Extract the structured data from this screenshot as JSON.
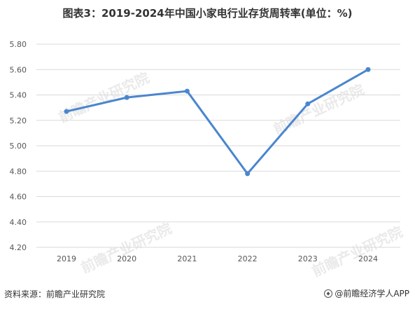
{
  "title": "图表3：2019-2024年中国小家电行业存货周转率(单位：%)",
  "source": "资料来源：前瞻产业研究院",
  "brand": "@前瞻经济学人APP",
  "watermark": "前瞻产业研究院",
  "colors": {
    "line": "#4a86cf",
    "grid": "#d9d9d9",
    "axis_text": "#555555"
  },
  "chart_data": {
    "type": "line",
    "title": "图表3：2019-2024年中国小家电行业存货周转率(单位：%)",
    "categories": [
      "2019",
      "2020",
      "2021",
      "2022",
      "2023",
      "2024"
    ],
    "values": [
      5.27,
      5.38,
      5.43,
      4.78,
      5.33,
      5.6
    ],
    "ylim": [
      4.2,
      5.8
    ],
    "yticks": [
      "4.20",
      "4.40",
      "4.60",
      "4.80",
      "5.00",
      "5.20",
      "5.40",
      "5.60",
      "5.80"
    ],
    "xlabel": "",
    "ylabel": "",
    "grid": true,
    "legend": "none"
  }
}
